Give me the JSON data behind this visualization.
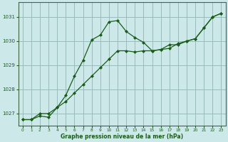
{
  "title": "Graphe pression niveau de la mer (hPa)",
  "background_color": "#cce8e8",
  "grid_color": "#99bbbb",
  "line_color": "#1a5c1a",
  "xlim": [
    -0.5,
    23.5
  ],
  "ylim": [
    1026.5,
    1031.6
  ],
  "yticks": [
    1027,
    1028,
    1029,
    1030,
    1031
  ],
  "xticks": [
    0,
    1,
    2,
    3,
    4,
    5,
    6,
    7,
    8,
    9,
    10,
    11,
    12,
    13,
    14,
    15,
    16,
    17,
    18,
    19,
    20,
    21,
    22,
    23
  ],
  "line1_x": [
    0,
    1,
    2,
    3,
    4,
    5,
    6,
    7,
    8,
    9,
    10,
    11,
    12,
    13,
    14,
    15,
    16,
    17,
    18,
    19,
    20,
    21,
    22,
    23
  ],
  "line1_y": [
    1026.75,
    1026.75,
    1026.9,
    1026.85,
    1027.25,
    1027.75,
    1028.55,
    1029.2,
    1030.05,
    1030.25,
    1030.8,
    1030.85,
    1030.4,
    1030.15,
    1029.95,
    1029.6,
    1029.65,
    1029.7,
    1029.9,
    1030.0,
    1030.1,
    1030.55,
    1031.0,
    1031.15
  ],
  "line2_x": [
    0,
    1,
    2,
    3,
    4,
    5,
    6,
    7,
    8,
    9,
    10,
    11,
    12,
    13,
    14,
    15,
    16,
    17,
    18,
    19,
    20,
    21,
    22,
    23
  ],
  "line2_y": [
    1026.75,
    1026.75,
    1027.0,
    1027.0,
    1027.25,
    1027.5,
    1027.85,
    1028.2,
    1028.55,
    1028.9,
    1029.25,
    1029.6,
    1029.6,
    1029.55,
    1029.6,
    1029.6,
    1029.65,
    1029.85,
    1029.85,
    1030.0,
    1030.1,
    1030.55,
    1031.0,
    1031.15
  ]
}
